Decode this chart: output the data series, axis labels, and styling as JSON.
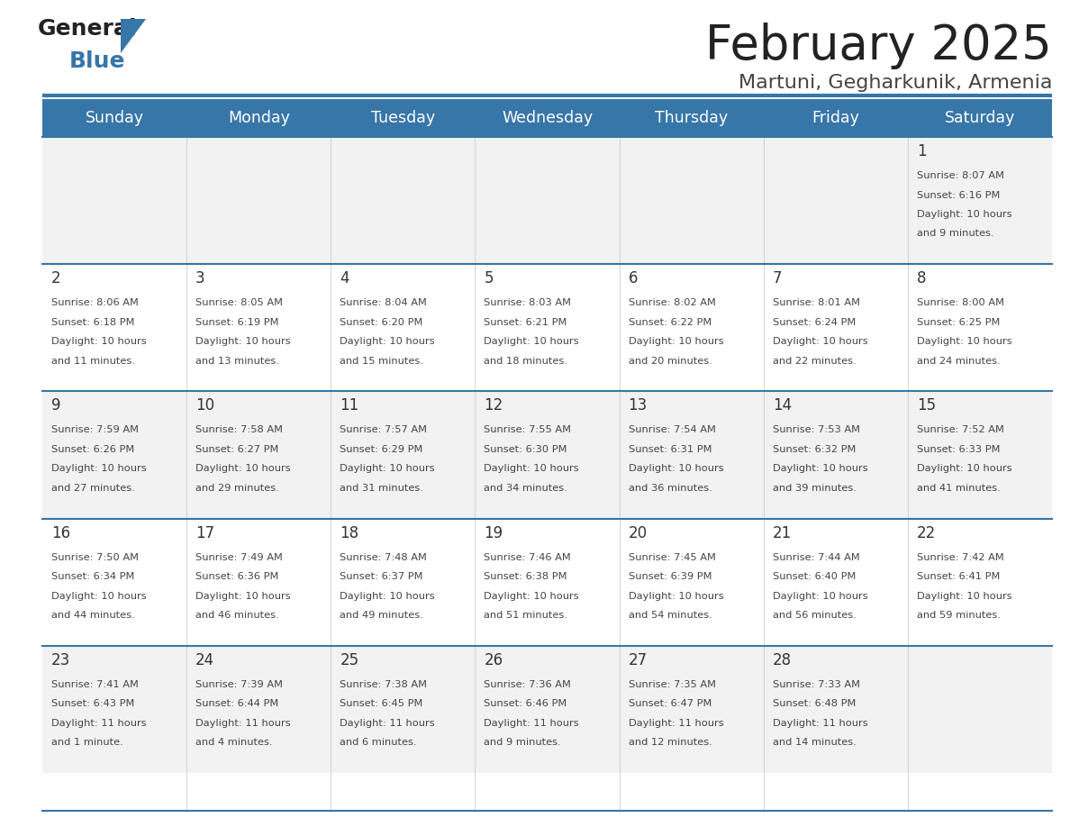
{
  "title": "February 2025",
  "subtitle": "Martuni, Gegharkunik, Armenia",
  "days_of_week": [
    "Sunday",
    "Monday",
    "Tuesday",
    "Wednesday",
    "Thursday",
    "Friday",
    "Saturday"
  ],
  "header_bg": "#3776a8",
  "header_text": "#ffffff",
  "row_bg_odd": "#f2f2f2",
  "row_bg_even": "#ffffff",
  "separator_color": "#3776a8",
  "title_color": "#222222",
  "subtitle_color": "#444444",
  "day_num_color": "#333333",
  "cell_text_color": "#444444",
  "logo_black": "#222222",
  "logo_blue": "#3776a8",
  "calendar_data": [
    [
      {
        "day": null,
        "sunrise": null,
        "sunset": null,
        "daylight": ""
      },
      {
        "day": null,
        "sunrise": null,
        "sunset": null,
        "daylight": ""
      },
      {
        "day": null,
        "sunrise": null,
        "sunset": null,
        "daylight": ""
      },
      {
        "day": null,
        "sunrise": null,
        "sunset": null,
        "daylight": ""
      },
      {
        "day": null,
        "sunrise": null,
        "sunset": null,
        "daylight": ""
      },
      {
        "day": null,
        "sunrise": null,
        "sunset": null,
        "daylight": ""
      },
      {
        "day": 1,
        "sunrise": "8:07 AM",
        "sunset": "6:16 PM",
        "daylight": "10 hours\nand 9 minutes."
      }
    ],
    [
      {
        "day": 2,
        "sunrise": "8:06 AM",
        "sunset": "6:18 PM",
        "daylight": "10 hours\nand 11 minutes."
      },
      {
        "day": 3,
        "sunrise": "8:05 AM",
        "sunset": "6:19 PM",
        "daylight": "10 hours\nand 13 minutes."
      },
      {
        "day": 4,
        "sunrise": "8:04 AM",
        "sunset": "6:20 PM",
        "daylight": "10 hours\nand 15 minutes."
      },
      {
        "day": 5,
        "sunrise": "8:03 AM",
        "sunset": "6:21 PM",
        "daylight": "10 hours\nand 18 minutes."
      },
      {
        "day": 6,
        "sunrise": "8:02 AM",
        "sunset": "6:22 PM",
        "daylight": "10 hours\nand 20 minutes."
      },
      {
        "day": 7,
        "sunrise": "8:01 AM",
        "sunset": "6:24 PM",
        "daylight": "10 hours\nand 22 minutes."
      },
      {
        "day": 8,
        "sunrise": "8:00 AM",
        "sunset": "6:25 PM",
        "daylight": "10 hours\nand 24 minutes."
      }
    ],
    [
      {
        "day": 9,
        "sunrise": "7:59 AM",
        "sunset": "6:26 PM",
        "daylight": "10 hours\nand 27 minutes."
      },
      {
        "day": 10,
        "sunrise": "7:58 AM",
        "sunset": "6:27 PM",
        "daylight": "10 hours\nand 29 minutes."
      },
      {
        "day": 11,
        "sunrise": "7:57 AM",
        "sunset": "6:29 PM",
        "daylight": "10 hours\nand 31 minutes."
      },
      {
        "day": 12,
        "sunrise": "7:55 AM",
        "sunset": "6:30 PM",
        "daylight": "10 hours\nand 34 minutes."
      },
      {
        "day": 13,
        "sunrise": "7:54 AM",
        "sunset": "6:31 PM",
        "daylight": "10 hours\nand 36 minutes."
      },
      {
        "day": 14,
        "sunrise": "7:53 AM",
        "sunset": "6:32 PM",
        "daylight": "10 hours\nand 39 minutes."
      },
      {
        "day": 15,
        "sunrise": "7:52 AM",
        "sunset": "6:33 PM",
        "daylight": "10 hours\nand 41 minutes."
      }
    ],
    [
      {
        "day": 16,
        "sunrise": "7:50 AM",
        "sunset": "6:34 PM",
        "daylight": "10 hours\nand 44 minutes."
      },
      {
        "day": 17,
        "sunrise": "7:49 AM",
        "sunset": "6:36 PM",
        "daylight": "10 hours\nand 46 minutes."
      },
      {
        "day": 18,
        "sunrise": "7:48 AM",
        "sunset": "6:37 PM",
        "daylight": "10 hours\nand 49 minutes."
      },
      {
        "day": 19,
        "sunrise": "7:46 AM",
        "sunset": "6:38 PM",
        "daylight": "10 hours\nand 51 minutes."
      },
      {
        "day": 20,
        "sunrise": "7:45 AM",
        "sunset": "6:39 PM",
        "daylight": "10 hours\nand 54 minutes."
      },
      {
        "day": 21,
        "sunrise": "7:44 AM",
        "sunset": "6:40 PM",
        "daylight": "10 hours\nand 56 minutes."
      },
      {
        "day": 22,
        "sunrise": "7:42 AM",
        "sunset": "6:41 PM",
        "daylight": "10 hours\nand 59 minutes."
      }
    ],
    [
      {
        "day": 23,
        "sunrise": "7:41 AM",
        "sunset": "6:43 PM",
        "daylight": "11 hours\nand 1 minute."
      },
      {
        "day": 24,
        "sunrise": "7:39 AM",
        "sunset": "6:44 PM",
        "daylight": "11 hours\nand 4 minutes."
      },
      {
        "day": 25,
        "sunrise": "7:38 AM",
        "sunset": "6:45 PM",
        "daylight": "11 hours\nand 6 minutes."
      },
      {
        "day": 26,
        "sunrise": "7:36 AM",
        "sunset": "6:46 PM",
        "daylight": "11 hours\nand 9 minutes."
      },
      {
        "day": 27,
        "sunrise": "7:35 AM",
        "sunset": "6:47 PM",
        "daylight": "11 hours\nand 12 minutes."
      },
      {
        "day": 28,
        "sunrise": "7:33 AM",
        "sunset": "6:48 PM",
        "daylight": "11 hours\nand 14 minutes."
      },
      {
        "day": null,
        "sunrise": null,
        "sunset": null,
        "daylight": ""
      }
    ]
  ],
  "figsize": [
    11.88,
    9.18
  ],
  "dpi": 100
}
